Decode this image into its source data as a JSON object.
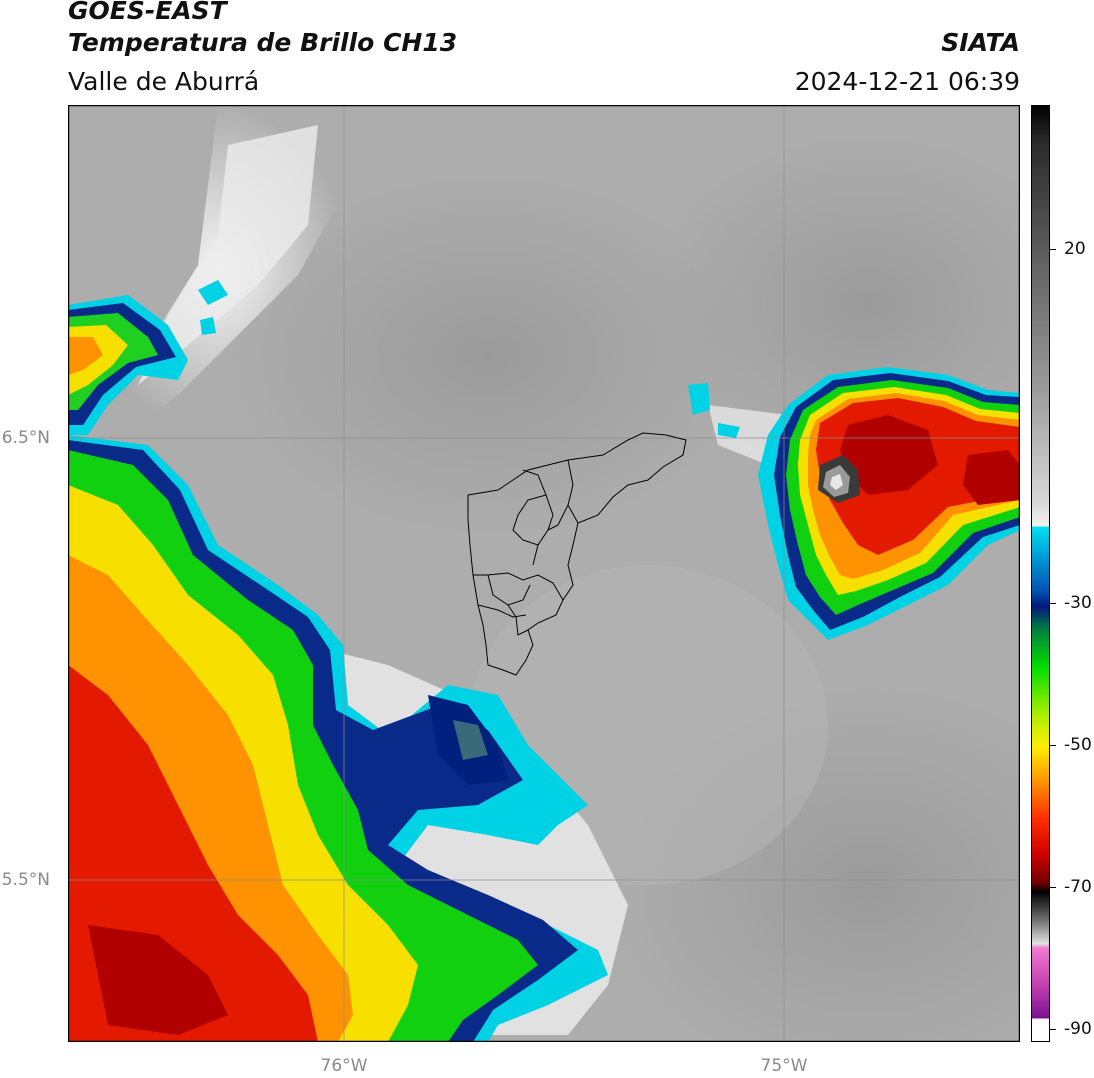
{
  "header": {
    "satellite": "GOES-EAST",
    "product": "Temperatura de Brillo CH13",
    "region": "Valle de Aburrá",
    "organization": "SIATA",
    "datetime": "2024-12-21 06:39"
  },
  "axes": {
    "lat_labels": [
      "6.5°N",
      "5.5°N"
    ],
    "lon_labels": [
      "76°W",
      "75°W"
    ]
  },
  "colorbar": {
    "tick_labels": [
      "20",
      "-30",
      "-50",
      "-70",
      "-90"
    ],
    "colors": {
      "warm_gray_light": "#f2f2f2",
      "warm_gray_dark": "#3c3c3c",
      "cyan": "#00d2e6",
      "dark_blue": "#001a7a",
      "green": "#00dd00",
      "yellow": "#ffee00",
      "orange": "#ff8c00",
      "red": "#e01000",
      "dark_red": "#7a0000",
      "black": "#000000",
      "magenta": "#e060c0",
      "purple": "#8a1a9a"
    }
  }
}
